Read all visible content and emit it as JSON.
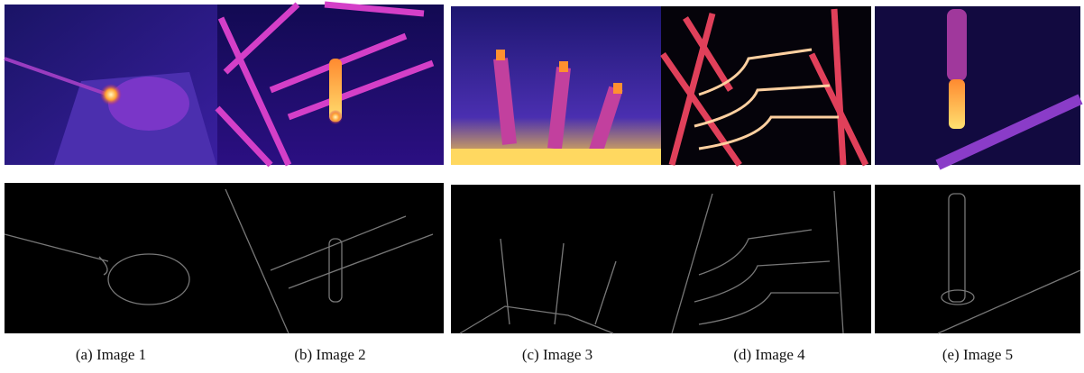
{
  "panels": [
    {
      "caption": "(a) Image 1"
    },
    {
      "caption": "(b) Image 2"
    },
    {
      "caption": "(c) Image 3"
    },
    {
      "caption": "(d) Image 4"
    },
    {
      "caption": "(e) Image 5"
    }
  ]
}
